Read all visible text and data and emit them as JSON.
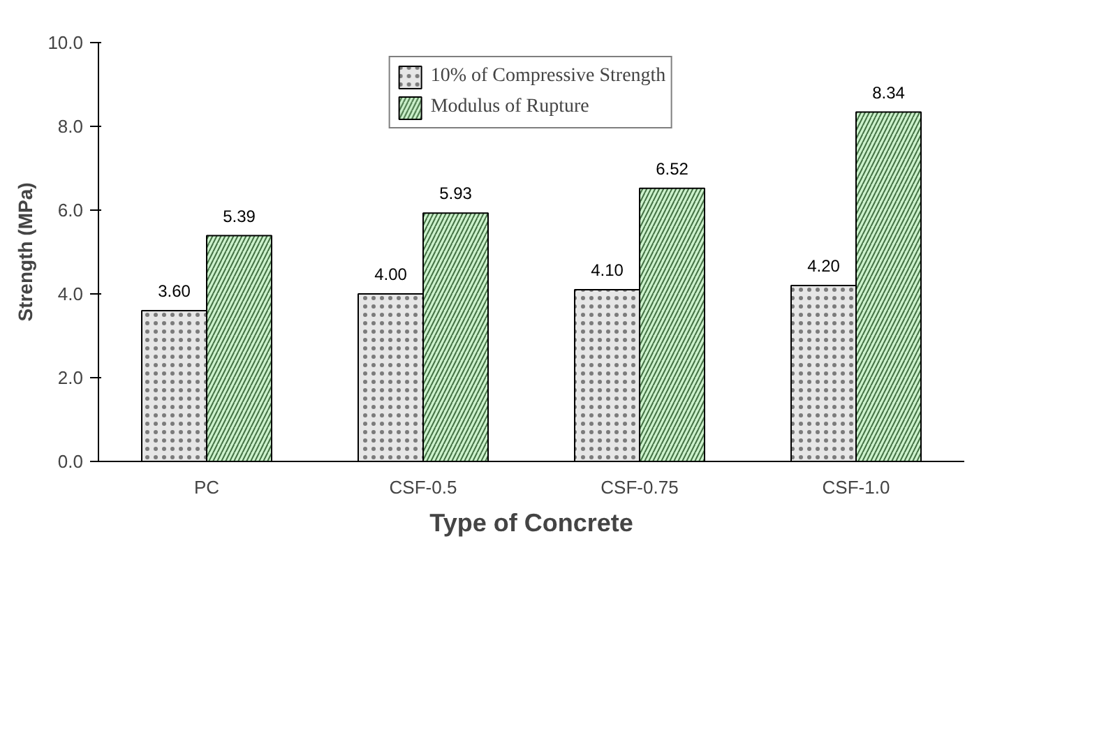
{
  "chart_data": {
    "type": "bar",
    "xlabel": "Type of Concrete",
    "ylabel": "Strength (MPa)",
    "categories": [
      "PC",
      "CSF-0.5",
      "CSF-0.75",
      "CSF-1.0"
    ],
    "series": [
      {
        "name": "10% of Compressive Strength",
        "color": "#e6e6e6",
        "values": [
          3.6,
          4.0,
          4.1,
          4.2
        ],
        "value_labels": [
          "3.60",
          "4.00",
          "4.10",
          "4.20"
        ]
      },
      {
        "name": "Modulus of Rupture",
        "color": "#ccf2cc",
        "values": [
          5.39,
          5.93,
          6.52,
          8.34
        ],
        "value_labels": [
          "5.39",
          "5.93",
          "6.52",
          "8.34"
        ]
      }
    ],
    "ylim": [
      0,
      10
    ],
    "yticks": [
      {
        "value": 0,
        "label": "0.0"
      },
      {
        "value": 2,
        "label": "2.0"
      },
      {
        "value": 4,
        "label": "4.0"
      },
      {
        "value": 6,
        "label": "6.0"
      },
      {
        "value": 8,
        "label": "8.0"
      },
      {
        "value": 10,
        "label": "10.0"
      }
    ],
    "grid": false,
    "legend": "top"
  }
}
